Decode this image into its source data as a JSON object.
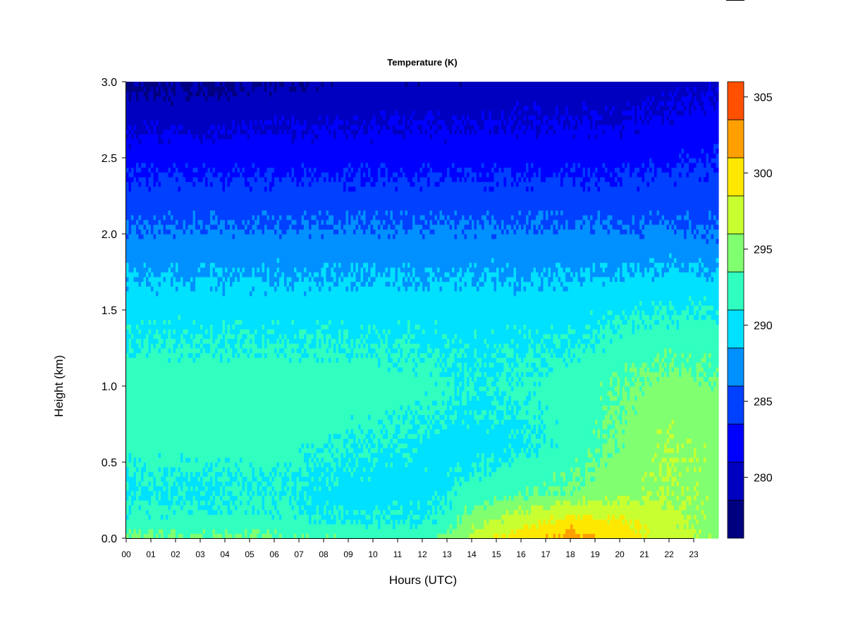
{
  "chart_data": {
    "type": "heatmap",
    "title": "Temperature (K)",
    "xlabel": "Hours (UTC)",
    "ylabel": "Height (km)",
    "x_ticks": [
      "00",
      "01",
      "02",
      "03",
      "04",
      "05",
      "06",
      "07",
      "08",
      "09",
      "10",
      "11",
      "12",
      "13",
      "14",
      "15",
      "16",
      "17",
      "18",
      "19",
      "20",
      "21",
      "22",
      "23"
    ],
    "y_ticks": [
      "0.0",
      "0.5",
      "1.0",
      "1.5",
      "2.0",
      "2.5",
      "3.0"
    ],
    "xlim": [
      0,
      24
    ],
    "ylim": [
      0,
      3.0
    ],
    "colorbar": {
      "ticks": [
        "280",
        "285",
        "290",
        "295",
        "300",
        "305"
      ],
      "range": [
        276,
        306
      ],
      "levels": [
        276,
        278.5,
        281,
        283.5,
        286,
        288.5,
        291,
        293.5,
        296,
        298.5,
        301,
        303.5,
        306
      ],
      "colors": [
        "#000080",
        "#0000c0",
        "#0000ff",
        "#0040ff",
        "#0090ff",
        "#00e0ff",
        "#30ffc0",
        "#80ff70",
        "#c8ff30",
        "#ffe800",
        "#ffa000",
        "#ff5000",
        "#ff1000",
        "#c80000",
        "#800000"
      ]
    },
    "grid": false,
    "legend_position": "right",
    "description_field": {
      "profile_heights_km": [
        0.0,
        0.1,
        0.3,
        0.6,
        1.0,
        1.5,
        2.0,
        2.5,
        3.0
      ],
      "profile_hours": [
        0,
        3,
        6,
        9,
        12,
        13,
        14,
        16,
        18,
        20,
        22,
        24
      ],
      "temperature_K": [
        [
          294,
          294,
          294,
          293,
          293,
          294,
          297,
          300,
          302,
          300,
          297,
          295
        ],
        [
          292,
          292,
          292,
          291,
          291,
          292,
          295,
          298,
          300,
          299,
          297,
          295
        ],
        [
          290.5,
          290.5,
          291,
          290,
          290,
          290.5,
          292,
          293,
          294,
          295,
          296,
          295
        ],
        [
          292,
          292,
          292,
          291,
          290.5,
          290,
          290,
          290.5,
          292,
          294,
          296,
          295
        ],
        [
          292.5,
          292.5,
          292.5,
          292.5,
          292,
          291.5,
          291,
          291.5,
          292,
          293.5,
          294.5,
          294
        ],
        [
          290,
          290,
          290,
          290,
          290,
          290,
          290,
          290,
          290,
          290.5,
          291,
          291
        ],
        [
          286.5,
          286.5,
          286.5,
          286.5,
          286.5,
          286.5,
          286.5,
          286.5,
          286.5,
          286.5,
          286.5,
          286
        ],
        [
          282.5,
          282.5,
          282.5,
          282.5,
          282.5,
          282.5,
          282.5,
          282.5,
          282.5,
          282.5,
          283,
          283.5
        ],
        [
          278,
          278,
          278.5,
          279,
          279,
          279,
          279,
          279.5,
          279.5,
          279.5,
          280,
          280.5
        ]
      ]
    }
  }
}
